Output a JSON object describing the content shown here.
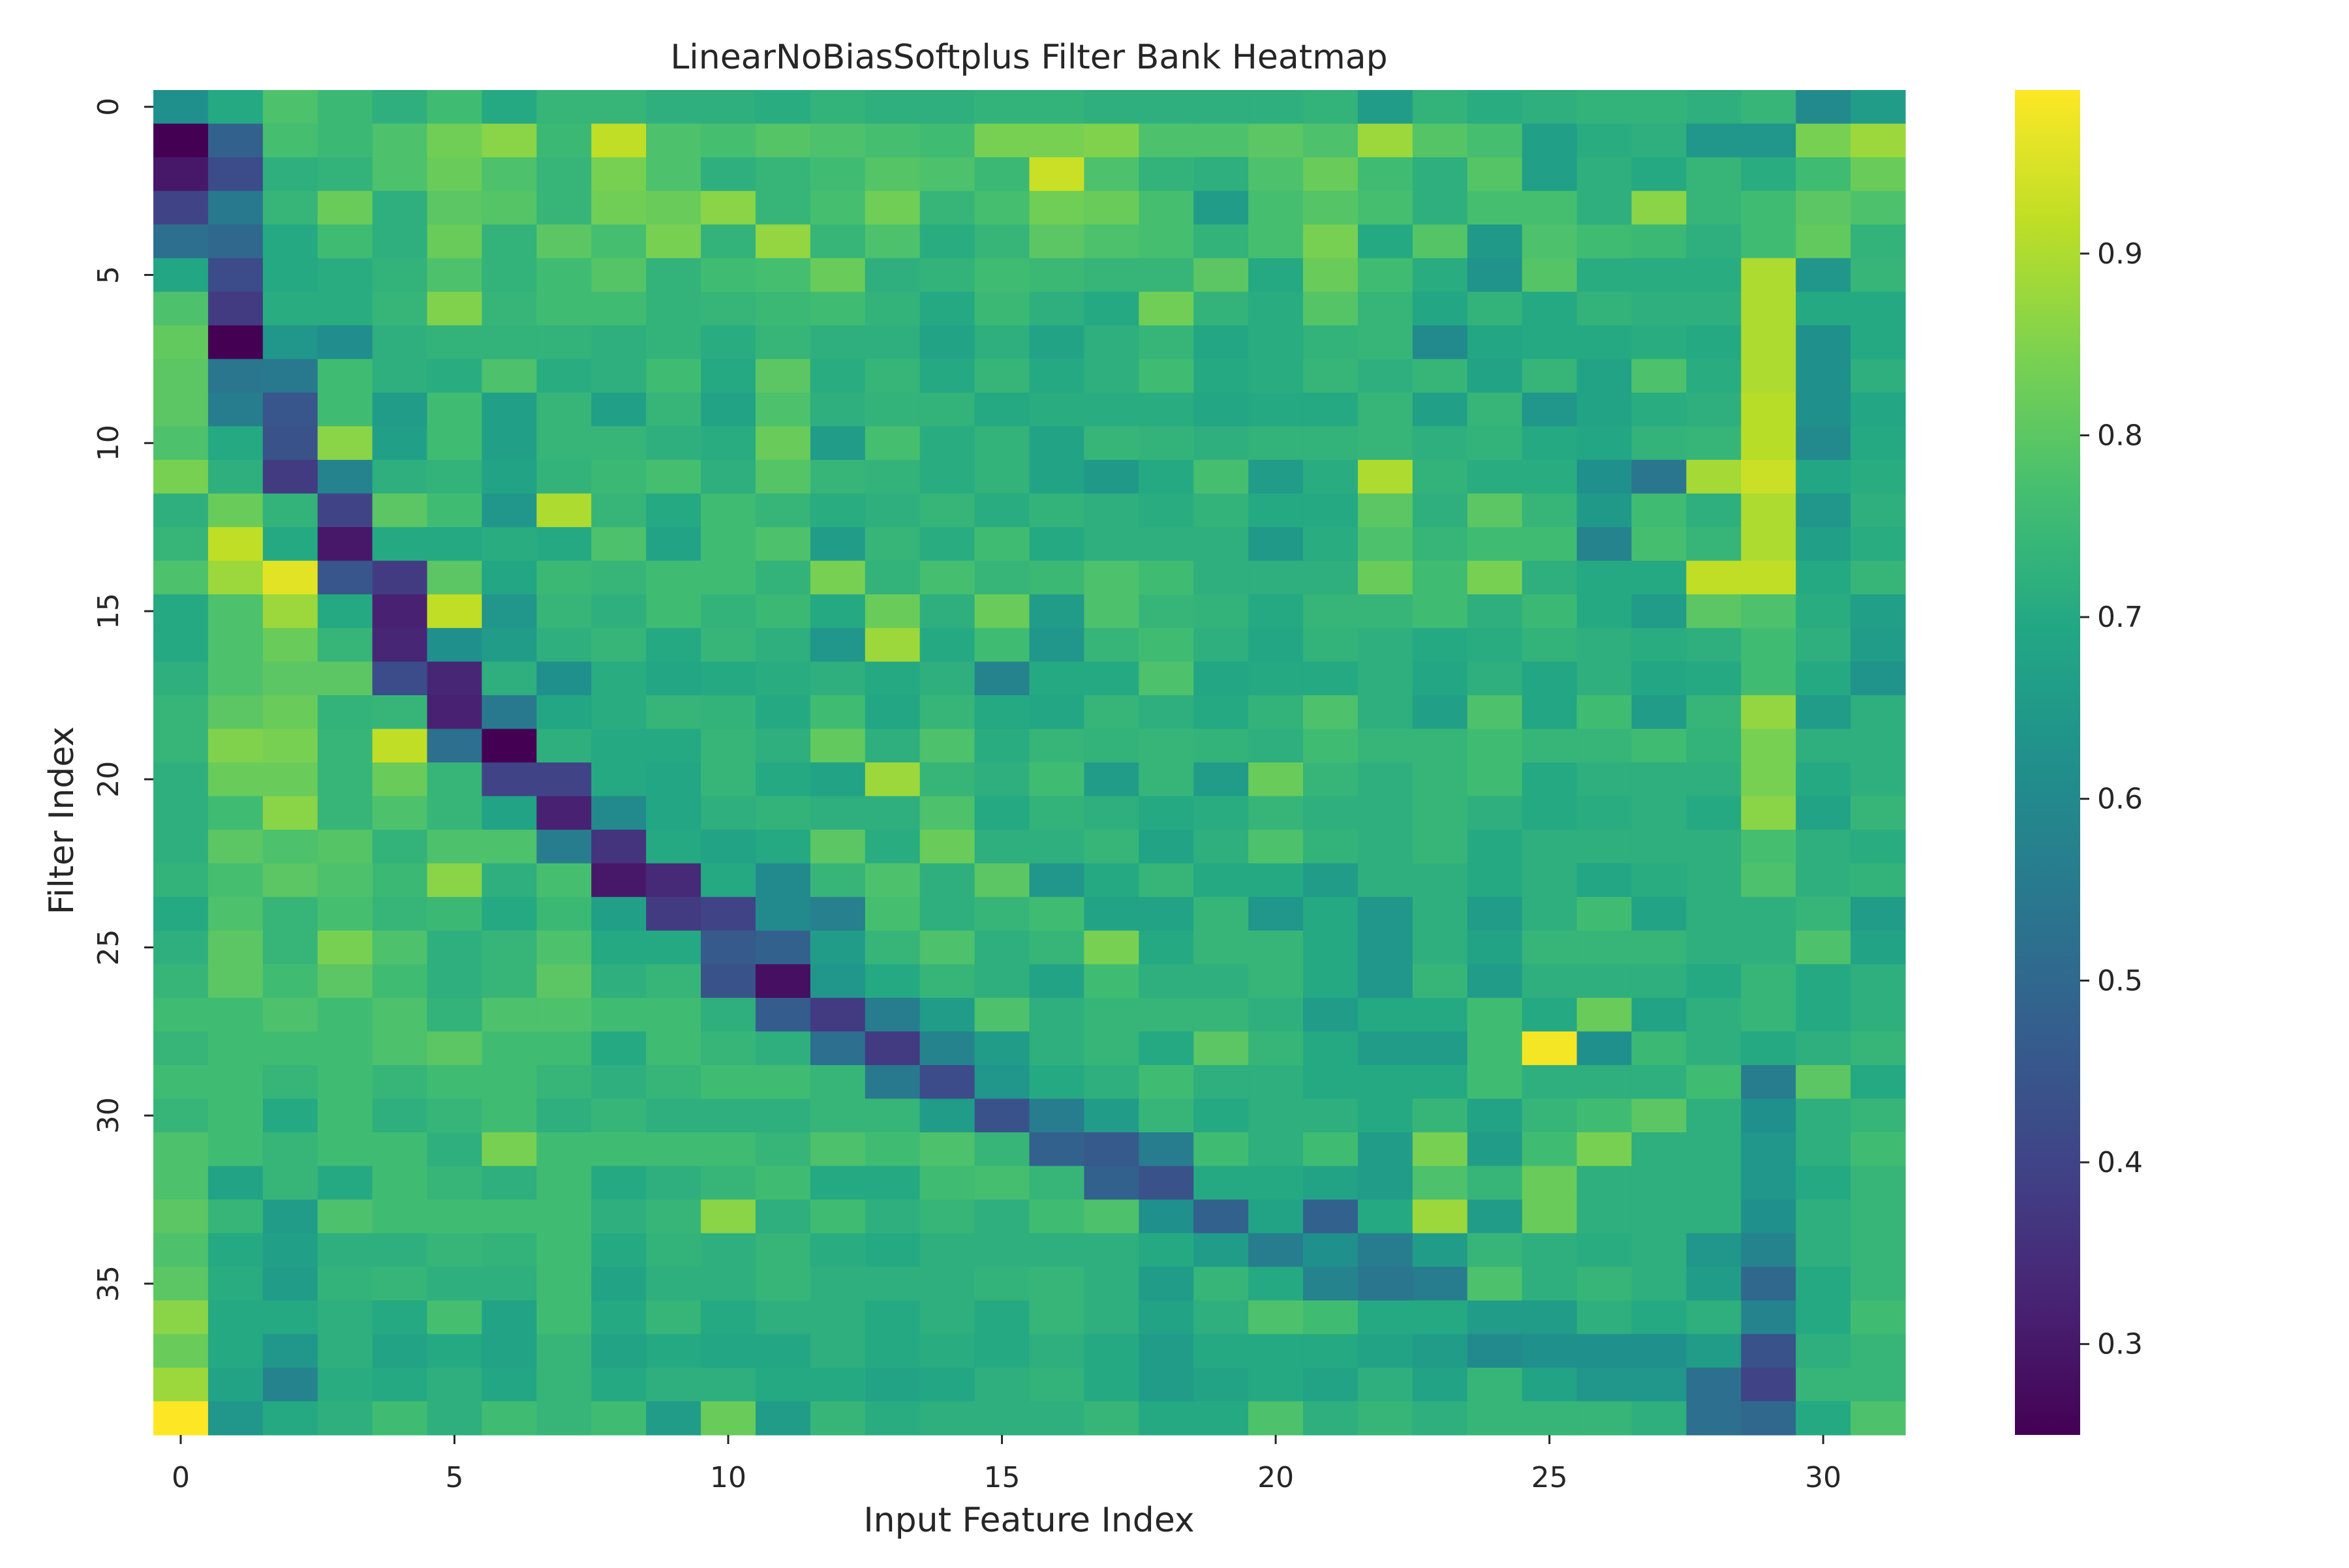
{
  "chart_data": {
    "type": "heatmap",
    "title": "LinearNoBiasSoftplus Filter Bank Heatmap",
    "xlabel": "Input Feature Index",
    "ylabel": "Filter Index",
    "x_tick_labels": [
      "0",
      "5",
      "10",
      "15",
      "20",
      "25",
      "30"
    ],
    "y_tick_labels": [
      "0",
      "5",
      "10",
      "15",
      "20",
      "25",
      "30",
      "35"
    ],
    "n_rows": 40,
    "n_cols": 32,
    "colormap": "viridis",
    "vmin": 0.25,
    "vmax": 0.99,
    "colorbar_ticks": [
      "0.3",
      "0.4",
      "0.5",
      "0.6",
      "0.7",
      "0.8",
      "0.9"
    ],
    "values": [
      [
        0.62,
        0.7,
        0.78,
        0.75,
        0.72,
        0.76,
        0.7,
        0.74,
        0.74,
        0.72,
        0.72,
        0.71,
        0.73,
        0.72,
        0.72,
        0.73,
        0.73,
        0.72,
        0.72,
        0.72,
        0.72,
        0.73,
        0.66,
        0.73,
        0.71,
        0.72,
        0.73,
        0.73,
        0.72,
        0.74,
        0.6,
        0.66
      ],
      [
        0.25,
        0.48,
        0.77,
        0.75,
        0.78,
        0.83,
        0.86,
        0.75,
        0.92,
        0.78,
        0.77,
        0.79,
        0.78,
        0.77,
        0.76,
        0.84,
        0.84,
        0.85,
        0.78,
        0.78,
        0.8,
        0.78,
        0.88,
        0.79,
        0.77,
        0.67,
        0.71,
        0.72,
        0.64,
        0.64,
        0.84,
        0.88
      ],
      [
        0.3,
        0.42,
        0.72,
        0.73,
        0.78,
        0.82,
        0.78,
        0.74,
        0.84,
        0.78,
        0.72,
        0.74,
        0.76,
        0.79,
        0.78,
        0.75,
        0.93,
        0.78,
        0.73,
        0.72,
        0.78,
        0.82,
        0.76,
        0.72,
        0.79,
        0.67,
        0.72,
        0.7,
        0.74,
        0.71,
        0.76,
        0.82
      ],
      [
        0.4,
        0.55,
        0.74,
        0.82,
        0.72,
        0.8,
        0.79,
        0.74,
        0.83,
        0.82,
        0.86,
        0.74,
        0.77,
        0.83,
        0.74,
        0.77,
        0.83,
        0.82,
        0.77,
        0.66,
        0.77,
        0.79,
        0.77,
        0.72,
        0.77,
        0.77,
        0.72,
        0.86,
        0.74,
        0.76,
        0.8,
        0.78
      ],
      [
        0.52,
        0.5,
        0.7,
        0.76,
        0.72,
        0.82,
        0.73,
        0.8,
        0.77,
        0.84,
        0.73,
        0.87,
        0.74,
        0.78,
        0.71,
        0.74,
        0.8,
        0.78,
        0.77,
        0.73,
        0.77,
        0.84,
        0.7,
        0.79,
        0.65,
        0.78,
        0.76,
        0.75,
        0.72,
        0.76,
        0.81,
        0.73
      ],
      [
        0.69,
        0.42,
        0.7,
        0.71,
        0.73,
        0.78,
        0.73,
        0.76,
        0.79,
        0.73,
        0.76,
        0.77,
        0.82,
        0.72,
        0.73,
        0.76,
        0.75,
        0.74,
        0.74,
        0.8,
        0.7,
        0.82,
        0.76,
        0.71,
        0.63,
        0.79,
        0.71,
        0.71,
        0.71,
        0.9,
        0.64,
        0.74
      ],
      [
        0.78,
        0.38,
        0.71,
        0.71,
        0.74,
        0.85,
        0.74,
        0.76,
        0.76,
        0.73,
        0.74,
        0.75,
        0.76,
        0.73,
        0.7,
        0.75,
        0.72,
        0.7,
        0.83,
        0.73,
        0.71,
        0.79,
        0.74,
        0.69,
        0.73,
        0.7,
        0.73,
        0.72,
        0.72,
        0.9,
        0.7,
        0.7
      ],
      [
        0.81,
        0.25,
        0.64,
        0.61,
        0.72,
        0.73,
        0.73,
        0.73,
        0.72,
        0.73,
        0.71,
        0.74,
        0.72,
        0.72,
        0.68,
        0.72,
        0.68,
        0.72,
        0.74,
        0.69,
        0.71,
        0.73,
        0.74,
        0.6,
        0.69,
        0.7,
        0.7,
        0.71,
        0.7,
        0.9,
        0.62,
        0.7
      ],
      [
        0.8,
        0.54,
        0.55,
        0.76,
        0.72,
        0.71,
        0.78,
        0.71,
        0.72,
        0.76,
        0.7,
        0.8,
        0.71,
        0.74,
        0.7,
        0.74,
        0.7,
        0.72,
        0.76,
        0.7,
        0.71,
        0.74,
        0.72,
        0.74,
        0.68,
        0.74,
        0.68,
        0.78,
        0.71,
        0.9,
        0.62,
        0.72
      ],
      [
        0.8,
        0.56,
        0.45,
        0.76,
        0.66,
        0.76,
        0.67,
        0.74,
        0.67,
        0.74,
        0.68,
        0.78,
        0.72,
        0.73,
        0.73,
        0.7,
        0.71,
        0.71,
        0.71,
        0.69,
        0.7,
        0.7,
        0.74,
        0.67,
        0.74,
        0.64,
        0.68,
        0.71,
        0.72,
        0.91,
        0.62,
        0.69
      ],
      [
        0.78,
        0.7,
        0.44,
        0.86,
        0.67,
        0.76,
        0.67,
        0.74,
        0.74,
        0.72,
        0.71,
        0.82,
        0.66,
        0.77,
        0.71,
        0.73,
        0.68,
        0.74,
        0.73,
        0.72,
        0.73,
        0.73,
        0.74,
        0.72,
        0.73,
        0.7,
        0.69,
        0.73,
        0.74,
        0.91,
        0.6,
        0.7
      ],
      [
        0.84,
        0.72,
        0.38,
        0.58,
        0.72,
        0.73,
        0.68,
        0.73,
        0.75,
        0.77,
        0.72,
        0.79,
        0.74,
        0.73,
        0.71,
        0.73,
        0.68,
        0.65,
        0.7,
        0.77,
        0.66,
        0.71,
        0.9,
        0.73,
        0.71,
        0.71,
        0.62,
        0.54,
        0.89,
        0.93,
        0.69,
        0.71
      ],
      [
        0.72,
        0.82,
        0.73,
        0.4,
        0.8,
        0.76,
        0.64,
        0.9,
        0.74,
        0.7,
        0.76,
        0.74,
        0.71,
        0.72,
        0.74,
        0.71,
        0.73,
        0.72,
        0.71,
        0.73,
        0.7,
        0.7,
        0.8,
        0.72,
        0.8,
        0.74,
        0.65,
        0.76,
        0.72,
        0.9,
        0.64,
        0.72
      ],
      [
        0.74,
        0.92,
        0.7,
        0.3,
        0.7,
        0.7,
        0.71,
        0.7,
        0.78,
        0.68,
        0.76,
        0.78,
        0.66,
        0.74,
        0.71,
        0.76,
        0.7,
        0.72,
        0.72,
        0.72,
        0.65,
        0.71,
        0.78,
        0.74,
        0.76,
        0.76,
        0.58,
        0.77,
        0.74,
        0.9,
        0.67,
        0.71
      ],
      [
        0.78,
        0.88,
        0.96,
        0.45,
        0.38,
        0.8,
        0.69,
        0.75,
        0.74,
        0.76,
        0.76,
        0.73,
        0.84,
        0.73,
        0.77,
        0.74,
        0.75,
        0.78,
        0.76,
        0.72,
        0.72,
        0.72,
        0.82,
        0.76,
        0.84,
        0.72,
        0.7,
        0.7,
        0.92,
        0.92,
        0.7,
        0.74
      ],
      [
        0.7,
        0.78,
        0.88,
        0.7,
        0.32,
        0.92,
        0.64,
        0.74,
        0.72,
        0.76,
        0.73,
        0.75,
        0.7,
        0.82,
        0.72,
        0.82,
        0.66,
        0.78,
        0.74,
        0.73,
        0.7,
        0.74,
        0.74,
        0.76,
        0.72,
        0.75,
        0.7,
        0.66,
        0.8,
        0.78,
        0.71,
        0.67
      ],
      [
        0.7,
        0.78,
        0.82,
        0.74,
        0.33,
        0.62,
        0.66,
        0.72,
        0.74,
        0.7,
        0.74,
        0.72,
        0.64,
        0.88,
        0.7,
        0.76,
        0.64,
        0.74,
        0.76,
        0.72,
        0.69,
        0.73,
        0.72,
        0.7,
        0.71,
        0.73,
        0.72,
        0.71,
        0.72,
        0.76,
        0.72,
        0.66
      ],
      [
        0.72,
        0.78,
        0.8,
        0.8,
        0.42,
        0.33,
        0.72,
        0.62,
        0.71,
        0.69,
        0.7,
        0.71,
        0.72,
        0.7,
        0.72,
        0.58,
        0.7,
        0.7,
        0.78,
        0.69,
        0.7,
        0.7,
        0.72,
        0.69,
        0.72,
        0.69,
        0.72,
        0.69,
        0.7,
        0.76,
        0.7,
        0.63
      ],
      [
        0.74,
        0.8,
        0.82,
        0.73,
        0.74,
        0.32,
        0.55,
        0.69,
        0.71,
        0.74,
        0.73,
        0.7,
        0.76,
        0.69,
        0.74,
        0.7,
        0.69,
        0.74,
        0.72,
        0.7,
        0.73,
        0.78,
        0.72,
        0.67,
        0.78,
        0.69,
        0.76,
        0.66,
        0.74,
        0.87,
        0.66,
        0.72
      ],
      [
        0.74,
        0.85,
        0.84,
        0.74,
        0.92,
        0.52,
        0.25,
        0.72,
        0.7,
        0.7,
        0.74,
        0.72,
        0.81,
        0.72,
        0.78,
        0.71,
        0.74,
        0.73,
        0.74,
        0.73,
        0.72,
        0.76,
        0.74,
        0.74,
        0.76,
        0.74,
        0.74,
        0.76,
        0.73,
        0.84,
        0.72,
        0.72
      ],
      [
        0.72,
        0.82,
        0.82,
        0.74,
        0.82,
        0.74,
        0.4,
        0.4,
        0.7,
        0.69,
        0.74,
        0.7,
        0.68,
        0.88,
        0.74,
        0.72,
        0.76,
        0.66,
        0.74,
        0.66,
        0.82,
        0.74,
        0.72,
        0.74,
        0.76,
        0.7,
        0.72,
        0.72,
        0.72,
        0.84,
        0.7,
        0.72
      ],
      [
        0.72,
        0.76,
        0.86,
        0.74,
        0.78,
        0.74,
        0.68,
        0.32,
        0.6,
        0.69,
        0.72,
        0.73,
        0.72,
        0.72,
        0.78,
        0.7,
        0.73,
        0.72,
        0.7,
        0.71,
        0.74,
        0.72,
        0.72,
        0.74,
        0.72,
        0.7,
        0.71,
        0.72,
        0.7,
        0.86,
        0.68,
        0.74
      ],
      [
        0.72,
        0.8,
        0.78,
        0.79,
        0.73,
        0.78,
        0.78,
        0.56,
        0.36,
        0.7,
        0.68,
        0.7,
        0.8,
        0.71,
        0.82,
        0.72,
        0.72,
        0.74,
        0.68,
        0.72,
        0.78,
        0.73,
        0.72,
        0.74,
        0.7,
        0.72,
        0.72,
        0.72,
        0.72,
        0.77,
        0.72,
        0.71
      ],
      [
        0.73,
        0.77,
        0.8,
        0.78,
        0.75,
        0.86,
        0.72,
        0.77,
        0.3,
        0.34,
        0.7,
        0.6,
        0.74,
        0.78,
        0.72,
        0.8,
        0.64,
        0.7,
        0.74,
        0.7,
        0.7,
        0.66,
        0.72,
        0.72,
        0.7,
        0.72,
        0.69,
        0.71,
        0.72,
        0.78,
        0.72,
        0.73
      ],
      [
        0.7,
        0.78,
        0.74,
        0.77,
        0.74,
        0.75,
        0.7,
        0.75,
        0.67,
        0.38,
        0.4,
        0.6,
        0.57,
        0.77,
        0.72,
        0.74,
        0.76,
        0.68,
        0.68,
        0.74,
        0.64,
        0.7,
        0.64,
        0.72,
        0.66,
        0.72,
        0.76,
        0.68,
        0.72,
        0.72,
        0.74,
        0.66
      ],
      [
        0.72,
        0.8,
        0.74,
        0.84,
        0.78,
        0.72,
        0.74,
        0.78,
        0.7,
        0.7,
        0.46,
        0.48,
        0.66,
        0.74,
        0.78,
        0.72,
        0.74,
        0.84,
        0.7,
        0.74,
        0.74,
        0.7,
        0.64,
        0.72,
        0.68,
        0.74,
        0.74,
        0.74,
        0.72,
        0.72,
        0.78,
        0.68
      ],
      [
        0.74,
        0.8,
        0.76,
        0.8,
        0.76,
        0.72,
        0.74,
        0.8,
        0.72,
        0.74,
        0.44,
        0.28,
        0.64,
        0.7,
        0.74,
        0.72,
        0.68,
        0.76,
        0.72,
        0.72,
        0.74,
        0.7,
        0.64,
        0.74,
        0.66,
        0.72,
        0.72,
        0.72,
        0.7,
        0.74,
        0.7,
        0.72
      ],
      [
        0.76,
        0.76,
        0.78,
        0.76,
        0.78,
        0.73,
        0.78,
        0.78,
        0.76,
        0.76,
        0.72,
        0.47,
        0.38,
        0.56,
        0.66,
        0.78,
        0.72,
        0.74,
        0.74,
        0.74,
        0.72,
        0.66,
        0.7,
        0.7,
        0.76,
        0.7,
        0.82,
        0.68,
        0.72,
        0.74,
        0.7,
        0.72
      ],
      [
        0.74,
        0.76,
        0.76,
        0.76,
        0.78,
        0.8,
        0.76,
        0.76,
        0.7,
        0.76,
        0.74,
        0.72,
        0.52,
        0.38,
        0.58,
        0.66,
        0.72,
        0.74,
        0.7,
        0.8,
        0.74,
        0.7,
        0.66,
        0.66,
        0.76,
        0.98,
        0.62,
        0.75,
        0.72,
        0.7,
        0.72,
        0.74
      ],
      [
        0.76,
        0.76,
        0.74,
        0.76,
        0.74,
        0.76,
        0.76,
        0.74,
        0.72,
        0.74,
        0.76,
        0.76,
        0.74,
        0.55,
        0.42,
        0.64,
        0.7,
        0.72,
        0.76,
        0.72,
        0.72,
        0.7,
        0.7,
        0.7,
        0.76,
        0.72,
        0.72,
        0.72,
        0.76,
        0.56,
        0.8,
        0.7
      ],
      [
        0.74,
        0.76,
        0.7,
        0.76,
        0.72,
        0.74,
        0.76,
        0.72,
        0.74,
        0.72,
        0.72,
        0.72,
        0.74,
        0.74,
        0.66,
        0.44,
        0.56,
        0.66,
        0.74,
        0.7,
        0.72,
        0.72,
        0.7,
        0.74,
        0.68,
        0.74,
        0.76,
        0.8,
        0.72,
        0.62,
        0.72,
        0.74
      ],
      [
        0.78,
        0.76,
        0.74,
        0.76,
        0.76,
        0.72,
        0.84,
        0.76,
        0.76,
        0.76,
        0.76,
        0.74,
        0.78,
        0.76,
        0.78,
        0.74,
        0.48,
        0.46,
        0.56,
        0.76,
        0.72,
        0.76,
        0.66,
        0.84,
        0.66,
        0.76,
        0.84,
        0.72,
        0.72,
        0.64,
        0.72,
        0.76
      ],
      [
        0.78,
        0.68,
        0.74,
        0.7,
        0.76,
        0.74,
        0.72,
        0.76,
        0.7,
        0.72,
        0.74,
        0.76,
        0.7,
        0.7,
        0.76,
        0.77,
        0.74,
        0.48,
        0.44,
        0.7,
        0.7,
        0.68,
        0.66,
        0.78,
        0.74,
        0.82,
        0.72,
        0.72,
        0.72,
        0.64,
        0.7,
        0.74
      ],
      [
        0.8,
        0.74,
        0.66,
        0.78,
        0.76,
        0.76,
        0.76,
        0.76,
        0.72,
        0.74,
        0.86,
        0.72,
        0.76,
        0.72,
        0.74,
        0.72,
        0.76,
        0.78,
        0.62,
        0.48,
        0.68,
        0.48,
        0.7,
        0.88,
        0.66,
        0.82,
        0.72,
        0.72,
        0.72,
        0.62,
        0.72,
        0.74
      ],
      [
        0.78,
        0.7,
        0.67,
        0.72,
        0.72,
        0.74,
        0.73,
        0.76,
        0.7,
        0.73,
        0.72,
        0.74,
        0.71,
        0.7,
        0.72,
        0.72,
        0.72,
        0.72,
        0.7,
        0.66,
        0.56,
        0.62,
        0.56,
        0.66,
        0.74,
        0.72,
        0.71,
        0.72,
        0.64,
        0.58,
        0.72,
        0.74
      ],
      [
        0.8,
        0.71,
        0.66,
        0.73,
        0.74,
        0.72,
        0.72,
        0.76,
        0.68,
        0.72,
        0.72,
        0.74,
        0.72,
        0.72,
        0.72,
        0.73,
        0.74,
        0.72,
        0.66,
        0.74,
        0.7,
        0.58,
        0.54,
        0.56,
        0.78,
        0.72,
        0.74,
        0.72,
        0.66,
        0.5,
        0.7,
        0.74
      ],
      [
        0.86,
        0.7,
        0.7,
        0.72,
        0.7,
        0.77,
        0.68,
        0.76,
        0.7,
        0.74,
        0.7,
        0.72,
        0.72,
        0.7,
        0.72,
        0.7,
        0.74,
        0.72,
        0.68,
        0.72,
        0.78,
        0.76,
        0.7,
        0.7,
        0.66,
        0.66,
        0.72,
        0.7,
        0.72,
        0.58,
        0.7,
        0.76
      ],
      [
        0.82,
        0.7,
        0.64,
        0.72,
        0.68,
        0.7,
        0.68,
        0.74,
        0.68,
        0.7,
        0.69,
        0.69,
        0.72,
        0.7,
        0.71,
        0.7,
        0.72,
        0.7,
        0.66,
        0.7,
        0.7,
        0.7,
        0.68,
        0.66,
        0.6,
        0.62,
        0.62,
        0.62,
        0.66,
        0.44,
        0.72,
        0.74
      ],
      [
        0.88,
        0.68,
        0.58,
        0.71,
        0.7,
        0.72,
        0.69,
        0.74,
        0.7,
        0.72,
        0.72,
        0.7,
        0.7,
        0.68,
        0.69,
        0.72,
        0.73,
        0.7,
        0.66,
        0.68,
        0.7,
        0.68,
        0.72,
        0.68,
        0.74,
        0.68,
        0.64,
        0.64,
        0.52,
        0.4,
        0.74,
        0.74
      ],
      [
        0.99,
        0.64,
        0.7,
        0.72,
        0.76,
        0.72,
        0.76,
        0.74,
        0.76,
        0.66,
        0.82,
        0.66,
        0.74,
        0.71,
        0.72,
        0.72,
        0.72,
        0.74,
        0.7,
        0.7,
        0.78,
        0.72,
        0.74,
        0.72,
        0.74,
        0.74,
        0.74,
        0.72,
        0.52,
        0.5,
        0.7,
        0.78
      ]
    ]
  }
}
